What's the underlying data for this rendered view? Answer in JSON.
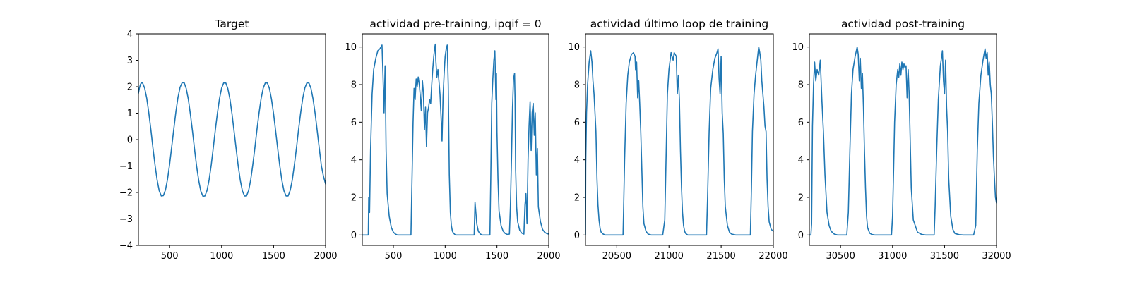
{
  "chart_data": [
    {
      "type": "line",
      "title": "Target",
      "xlim": [
        200,
        2000
      ],
      "ylim": [
        -4,
        4
      ],
      "xticks": [
        500,
        1000,
        1500,
        2000
      ],
      "yticks": [
        -4,
        -3,
        -2,
        -1,
        0,
        1,
        2,
        3,
        4
      ],
      "color": "#1f77b4",
      "series": [
        {
          "x": [
            200,
            210,
            220,
            230,
            240,
            260,
            280,
            300,
            320,
            340,
            360,
            380,
            400,
            420,
            440,
            460,
            480,
            500,
            520,
            540,
            560,
            580,
            600,
            620,
            640,
            660,
            680,
            700,
            720,
            740,
            760,
            780,
            800,
            820,
            840,
            860,
            880,
            900,
            920,
            940,
            960,
            980,
            1000,
            1020,
            1040,
            1060,
            1080,
            1100,
            1120,
            1140,
            1160,
            1180,
            1200,
            1220,
            1240,
            1260,
            1280,
            1300,
            1320,
            1340,
            1360,
            1380,
            1400,
            1420,
            1440,
            1460,
            1480,
            1500,
            1520,
            1540,
            1560,
            1580,
            1600,
            1620,
            1640,
            1660,
            1680,
            1700,
            1720,
            1740,
            1760,
            1780,
            1800,
            1820,
            1840,
            1860,
            1880,
            1900,
            1920,
            1940,
            1960,
            1980,
            2000
          ],
          "y": [
            1.75,
            1.96,
            2.09,
            2.15,
            2.14,
            1.95,
            1.56,
            1.01,
            0.36,
            -0.33,
            -0.98,
            -1.53,
            -1.93,
            -2.13,
            -2.12,
            -1.9,
            -1.5,
            -0.93,
            -0.28,
            0.4,
            1.04,
            1.58,
            1.97,
            2.15,
            2.15,
            1.93,
            1.52,
            0.96,
            0.31,
            -0.37,
            -1.01,
            -1.55,
            -1.95,
            -2.14,
            -2.13,
            -1.92,
            -1.52,
            -0.96,
            -0.31,
            0.37,
            1.01,
            1.55,
            1.95,
            2.14,
            2.14,
            1.93,
            1.53,
            0.97,
            0.32,
            -0.36,
            -1.0,
            -1.55,
            -1.94,
            -2.13,
            -2.13,
            -1.92,
            -1.52,
            -0.96,
            -0.31,
            0.37,
            1.01,
            1.55,
            1.95,
            2.14,
            2.14,
            1.93,
            1.53,
            0.97,
            0.32,
            -0.36,
            -1.0,
            -1.55,
            -1.94,
            -2.13,
            -2.13,
            -1.92,
            -1.52,
            -0.96,
            -0.31,
            0.37,
            1.01,
            1.55,
            1.95,
            2.14,
            2.14,
            1.93,
            1.53,
            0.97,
            0.32,
            -0.36,
            -1.0,
            -1.4,
            -1.68
          ]
        }
      ]
    },
    {
      "type": "line",
      "title": "actividad pre-training, ipqif = 0",
      "xlim": [
        200,
        2000
      ],
      "ylim": [
        -0.55,
        10.7
      ],
      "xticks": [
        500,
        1000,
        1500,
        2000
      ],
      "yticks": [
        0,
        2,
        4,
        6,
        8,
        10
      ],
      "color": "#1f77b4",
      "series": [
        {
          "x": [
            200,
            250,
            258,
            262,
            270,
            280,
            295,
            310,
            330,
            350,
            370,
            390,
            400,
            410,
            420,
            430,
            440,
            460,
            480,
            500,
            520,
            540,
            560,
            580,
            600,
            620,
            650,
            670,
            680,
            690,
            700,
            710,
            720,
            730,
            740,
            750,
            760,
            770,
            780,
            790,
            800,
            810,
            820,
            830,
            840,
            850,
            860,
            870,
            880,
            890,
            900,
            905,
            910,
            920,
            930,
            940,
            950,
            960,
            970,
            980,
            990,
            1000,
            1010,
            1020,
            1030,
            1040,
            1050,
            1060,
            1070,
            1080,
            1090,
            1100,
            1110,
            1120,
            1140,
            1160,
            1180,
            1200,
            1230,
            1260,
            1280,
            1288,
            1295,
            1305,
            1320,
            1340,
            1360,
            1400,
            1420,
            1432,
            1440,
            1450,
            1460,
            1470,
            1480,
            1490,
            1495,
            1500,
            1510,
            1520,
            1540,
            1560,
            1580,
            1600,
            1620,
            1630,
            1640,
            1650,
            1660,
            1670,
            1675,
            1680,
            1690,
            1700,
            1720,
            1740,
            1760,
            1770,
            1780,
            1790,
            1800,
            1810,
            1820,
            1830,
            1840,
            1850,
            1860,
            1870,
            1880,
            1890,
            1900,
            1920,
            1940,
            1960,
            1980,
            2000
          ],
          "y": [
            0,
            0,
            0,
            2.0,
            1.2,
            4.5,
            7.5,
            8.8,
            9.4,
            9.8,
            9.9,
            10.1,
            8.5,
            6.5,
            9.0,
            4.5,
            2.2,
            1.0,
            0.4,
            0.15,
            0.05,
            0,
            0,
            0,
            0,
            0,
            0,
            0,
            3.0,
            6.0,
            7.8,
            7.2,
            8.3,
            7.9,
            8.4,
            8.0,
            7.4,
            6.6,
            8.2,
            7.6,
            5.6,
            6.8,
            4.7,
            6.5,
            6.8,
            7.2,
            7.0,
            8.0,
            8.8,
            9.5,
            10.0,
            10.15,
            9.3,
            8.4,
            8.8,
            8.2,
            7.5,
            6.3,
            5.0,
            7.4,
            8.6,
            9.5,
            9.9,
            10.1,
            8.0,
            3.2,
            1.2,
            0.5,
            0.2,
            0.1,
            0.05,
            0,
            0,
            0,
            0,
            0,
            0,
            0,
            0,
            0,
            0,
            1.75,
            1.3,
            0.6,
            0.2,
            0.05,
            0,
            0,
            0,
            0,
            3.0,
            7.0,
            8.3,
            9.3,
            9.8,
            7.2,
            8.6,
            5.5,
            3.0,
            1.3,
            0.5,
            0.2,
            0.08,
            0.03,
            0.05,
            1.5,
            4.0,
            6.8,
            8.3,
            8.6,
            7.2,
            3.5,
            1.5,
            0.7,
            0.25,
            0.1,
            0.05,
            1.6,
            2.2,
            0.6,
            4.0,
            5.8,
            7.1,
            4.5,
            6.5,
            7.0,
            5.3,
            6.5,
            3.2,
            4.6,
            1.5,
            0.7,
            0.3,
            0.15,
            0.08,
            0.05
          ]
        }
      ]
    },
    {
      "type": "line",
      "title": "actividad último loop de training",
      "xlim": [
        20200,
        22000
      ],
      "ylim": [
        -0.55,
        10.7
      ],
      "xticks": [
        20500,
        21000,
        21500,
        22000
      ],
      "yticks": [
        0,
        2,
        4,
        6,
        8,
        10
      ],
      "color": "#1f77b4",
      "series": [
        {
          "x": [
            20200,
            20203,
            20210,
            20220,
            20235,
            20250,
            20262,
            20272,
            20282,
            20292,
            20300,
            20310,
            20320,
            20330,
            20340,
            20350,
            20370,
            20390,
            20410,
            20440,
            20470,
            20500,
            20530,
            20560,
            20565,
            20575,
            20590,
            20605,
            20620,
            20640,
            20660,
            20675,
            20680,
            20690,
            20700,
            20710,
            20720,
            20730,
            20740,
            20750,
            20760,
            20780,
            20800,
            20830,
            20860,
            20900,
            20940,
            20960,
            20970,
            20985,
            21000,
            21020,
            21040,
            21050,
            21060,
            21070,
            21080,
            21090,
            21100,
            21110,
            21120,
            21130,
            21140,
            21150,
            21160,
            21180,
            21200,
            21240,
            21280,
            21320,
            21360,
            21370,
            21385,
            21400,
            21420,
            21440,
            21460,
            21470,
            21480,
            21490,
            21500,
            21510,
            21520,
            21530,
            21540,
            21560,
            21580,
            21600,
            21640,
            21680,
            21720,
            21760,
            21780,
            21790,
            21800,
            21815,
            21830,
            21850,
            21860,
            21870,
            21880,
            21890,
            21900,
            21910,
            21920,
            21930,
            21940,
            21950,
            21960,
            21980,
            22000
          ],
          "y": [
            0,
            3.8,
            6.5,
            8.0,
            9.2,
            9.8,
            9.2,
            8.2,
            7.5,
            6.4,
            5.5,
            3.0,
            1.6,
            0.8,
            0.35,
            0.15,
            0.05,
            0,
            0,
            0,
            0,
            0,
            0,
            0,
            1.2,
            4.0,
            7.0,
            8.5,
            9.2,
            9.6,
            9.7,
            9.5,
            8.8,
            9.2,
            7.3,
            8.2,
            7.0,
            5.5,
            3.5,
            1.5,
            0.6,
            0.2,
            0.05,
            0,
            0,
            0,
            0,
            0.8,
            3.5,
            7.5,
            8.8,
            9.7,
            9.3,
            9.7,
            9.6,
            9.5,
            7.5,
            8.5,
            7.2,
            4.5,
            2.5,
            1.2,
            0.5,
            0.2,
            0.08,
            0,
            0,
            0,
            0,
            0,
            0,
            2.0,
            5.5,
            7.8,
            8.8,
            9.4,
            9.7,
            9.9,
            8.3,
            7.5,
            9.5,
            6.5,
            5.4,
            3.0,
            1.5,
            0.5,
            0.15,
            0.05,
            0,
            0,
            0,
            0,
            0,
            2.5,
            5.5,
            7.5,
            8.5,
            9.5,
            10.0,
            9.7,
            9.3,
            8.2,
            7.5,
            6.8,
            5.8,
            5.5,
            3.0,
            1.5,
            0.7,
            0.3,
            0.2
          ]
        }
      ]
    },
    {
      "type": "line",
      "title": "actividad post-training",
      "xlim": [
        30200,
        32000
      ],
      "ylim": [
        -0.55,
        10.7
      ],
      "xticks": [
        30500,
        31000,
        31500,
        32000
      ],
      "yticks": [
        0,
        2,
        4,
        6,
        8,
        10
      ],
      "color": "#1f77b4",
      "series": [
        {
          "x": [
            30200,
            30215,
            30222,
            30230,
            30240,
            30250,
            30262,
            30275,
            30290,
            30305,
            30320,
            30335,
            30350,
            30370,
            30390,
            30410,
            30440,
            30470,
            30500,
            30540,
            30560,
            30575,
            30590,
            30605,
            30620,
            30640,
            30660,
            30670,
            30680,
            30690,
            30700,
            30710,
            30720,
            30730,
            30740,
            30750,
            30760,
            30780,
            30800,
            30830,
            30860,
            30900,
            30950,
            30990,
            31000,
            31010,
            31020,
            31035,
            31050,
            31060,
            31070,
            31080,
            31090,
            31100,
            31110,
            31120,
            31130,
            31140,
            31150,
            31160,
            31170,
            31180,
            31200,
            31240,
            31280,
            31320,
            31360,
            31400,
            31410,
            31425,
            31440,
            31460,
            31470,
            31480,
            31490,
            31500,
            31510,
            31520,
            31530,
            31540,
            31560,
            31580,
            31600,
            31640,
            31680,
            31720,
            31760,
            31780,
            31800,
            31805,
            31815,
            31830,
            31850,
            31870,
            31880,
            31890,
            31900,
            31910,
            31920,
            31930,
            31940,
            31950,
            31960,
            31970,
            31980,
            31990,
            32000
          ],
          "y": [
            0,
            0,
            0.6,
            5.8,
            8.0,
            9.2,
            8.2,
            8.8,
            8.5,
            9.3,
            7.2,
            5.5,
            3.2,
            1.2,
            0.5,
            0.2,
            0.05,
            0,
            0,
            0,
            0,
            1.2,
            4.5,
            7.5,
            8.8,
            9.5,
            10.0,
            9.6,
            8.2,
            9.4,
            7.8,
            8.6,
            6.8,
            4.5,
            2.5,
            1.0,
            0.4,
            0.1,
            0.03,
            0,
            0,
            0,
            0,
            0,
            1.0,
            3.5,
            6.0,
            8.0,
            8.8,
            8.4,
            9.1,
            8.5,
            9.2,
            8.8,
            9.1,
            8.9,
            9.0,
            7.3,
            8.8,
            7.5,
            5.0,
            2.5,
            0.8,
            0.15,
            0.03,
            0,
            0,
            0,
            1.5,
            4.5,
            7.2,
            9.0,
            9.4,
            9.8,
            8.2,
            7.5,
            9.3,
            6.8,
            5.5,
            3.0,
            1.0,
            0.3,
            0.08,
            0.02,
            0,
            0,
            0,
            0,
            0.5,
            1.8,
            4.5,
            7.0,
            8.5,
            9.3,
            9.6,
            9.9,
            9.4,
            9.7,
            8.5,
            9.2,
            8.0,
            7.5,
            6.0,
            4.2,
            3.0,
            2.0,
            1.7
          ]
        }
      ]
    }
  ]
}
